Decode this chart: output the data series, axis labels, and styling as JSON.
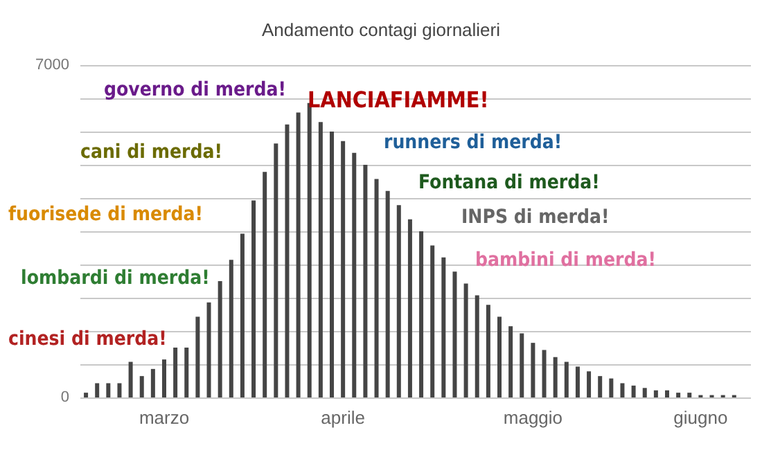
{
  "chart_data": {
    "type": "bar",
    "title": "Andamento contagi giornalieri",
    "categories": [
      null,
      null,
      null,
      null,
      null,
      null,
      null,
      "marzo",
      null,
      null,
      null,
      null,
      null,
      null,
      null,
      null,
      null,
      null,
      null,
      null,
      null,
      null,
      null,
      "aprile",
      null,
      null,
      null,
      null,
      null,
      null,
      null,
      null,
      null,
      null,
      null,
      null,
      null,
      null,
      null,
      null,
      "maggio",
      null,
      null,
      null,
      null,
      null,
      null,
      null,
      null,
      null,
      null,
      null,
      null,
      null,
      null,
      "giugno",
      null,
      null,
      null,
      null
    ],
    "values": [
      100,
      300,
      300,
      300,
      750,
      450,
      600,
      800,
      1050,
      1050,
      1700,
      2000,
      2450,
      2900,
      3450,
      4150,
      4750,
      5350,
      5750,
      6000,
      6200,
      5800,
      5600,
      5400,
      5150,
      4900,
      4600,
      4350,
      4050,
      3750,
      3500,
      3200,
      2950,
      2650,
      2400,
      2150,
      1950,
      1700,
      1500,
      1350,
      1150,
      1000,
      850,
      750,
      650,
      550,
      450,
      400,
      300,
      250,
      200,
      150,
      150,
      100,
      100,
      50,
      50,
      50,
      50,
      0
    ],
    "color": "#454545",
    "ylim": [
      0,
      7000
    ],
    "yticks": [
      0,
      {
        "value": 700,
        "label": null
      },
      {
        "value": 1400,
        "label": null
      },
      {
        "value": 2100,
        "label": null
      },
      {
        "value": 2800,
        "label": null
      },
      {
        "value": 3500,
        "label": null
      },
      {
        "value": 4200,
        "label": null
      },
      {
        "value": 4900,
        "label": null
      },
      {
        "value": 5600,
        "label": null
      },
      {
        "value": 6300,
        "label": null
      },
      7000
    ],
    "grid": "y",
    "annotations": [
      "governo di merda!",
      "LANCIAFIAMME!",
      "cani di merda!",
      "runners di merda!",
      "Fontana di merda!",
      "fuorisede di merda!",
      "INPS di merda!",
      "bambini di merda!",
      "lombardi di merda!",
      "cinesi di merda!"
    ]
  }
}
